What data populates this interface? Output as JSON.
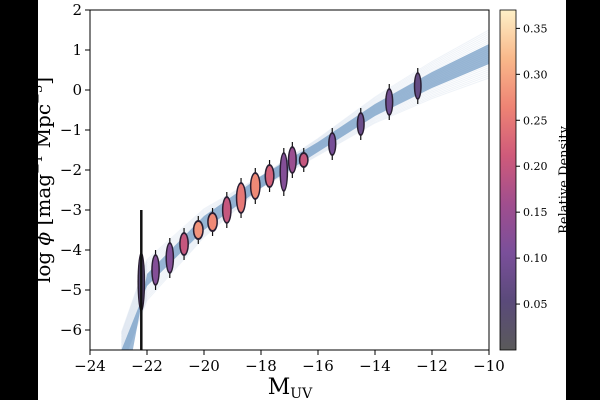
{
  "chart_data": {
    "type": "scatter",
    "background": "#000000",
    "xaxis": {
      "label": "M",
      "label_subscript": "UV",
      "xlim": [
        -24,
        -10
      ],
      "ticks": [
        -24,
        -22,
        -20,
        -18,
        -16,
        -14,
        -12,
        -10
      ],
      "tick_labels": [
        "−24",
        "−22",
        "−20",
        "−18",
        "−16",
        "−14",
        "−12",
        "−10"
      ]
    },
    "yaxis": {
      "label_prefix": "log ",
      "label_symbol": "ϕ",
      "label_units": " [mag",
      "label_exp1": "−1",
      "label_mid": " Mpc",
      "label_exp2": "−3",
      "label_close": "]",
      "ylim": [
        -6.5,
        2
      ],
      "ticks": [
        -6,
        -5,
        -4,
        -3,
        -2,
        -1,
        0,
        1,
        2
      ],
      "tick_labels": [
        "−6",
        "−5",
        "−4",
        "−3",
        "−2",
        "−1",
        "0",
        "1",
        "2"
      ]
    },
    "colorbar": {
      "label": "Relative Density",
      "range": [
        0,
        0.37
      ],
      "ticks": [
        0.05,
        0.1,
        0.15,
        0.2,
        0.25,
        0.3,
        0.35
      ],
      "tick_labels": [
        "0.05",
        "0.10",
        "0.15",
        "0.20",
        "0.25",
        "0.30",
        "0.35"
      ],
      "colors": [
        "#5a5a5a",
        "#5a4a7a",
        "#7a4f9a",
        "#a04e8e",
        "#cf5a7a",
        "#ee8374",
        "#f9b88a",
        "#fef0c7"
      ]
    },
    "model_fits": {
      "color": "#4a7fb5",
      "description_band_low": [
        [
          -22.9,
          -6.5
        ],
        [
          -22,
          -4.9
        ],
        [
          -20,
          -3.5
        ],
        [
          -18,
          -2.45
        ],
        [
          -16,
          -1.55
        ],
        [
          -14,
          -0.65
        ],
        [
          -12,
          0.05
        ],
        [
          -10,
          0.65
        ]
      ],
      "description_band_high": [
        [
          -22.5,
          -6.5
        ],
        [
          -22,
          -4.6
        ],
        [
          -20,
          -3.15
        ],
        [
          -18,
          -2.15
        ],
        [
          -16,
          -1.3
        ],
        [
          -14,
          -0.35
        ],
        [
          -12,
          0.45
        ],
        [
          -10,
          1.15
        ]
      ]
    },
    "series": [
      {
        "x": -22.2,
        "y": -4.8,
        "height": 1.5,
        "density": 0.05
      },
      {
        "x": -21.7,
        "y": -4.5,
        "height": 0.8,
        "density": 0.12
      },
      {
        "x": -21.2,
        "y": -4.2,
        "height": 0.8,
        "density": 0.12
      },
      {
        "x": -20.7,
        "y": -3.85,
        "height": 0.6,
        "density": 0.2
      },
      {
        "x": -20.2,
        "y": -3.5,
        "height": 0.5,
        "density": 0.28
      },
      {
        "x": -19.7,
        "y": -3.3,
        "height": 0.5,
        "density": 0.27
      },
      {
        "x": -19.2,
        "y": -3.0,
        "height": 0.7,
        "density": 0.2
      },
      {
        "x": -18.7,
        "y": -2.7,
        "height": 0.8,
        "density": 0.25
      },
      {
        "x": -18.2,
        "y": -2.4,
        "height": 0.7,
        "density": 0.27
      },
      {
        "x": -17.7,
        "y": -2.15,
        "height": 0.6,
        "density": 0.22
      },
      {
        "x": -17.2,
        "y": -2.05,
        "height": 1.0,
        "density": 0.12
      },
      {
        "x": -16.9,
        "y": -1.75,
        "height": 0.7,
        "density": 0.15
      },
      {
        "x": -16.5,
        "y": -1.75,
        "height": 0.4,
        "density": 0.2
      },
      {
        "x": -15.5,
        "y": -1.35,
        "height": 0.6,
        "density": 0.1
      },
      {
        "x": -14.5,
        "y": -0.85,
        "height": 0.6,
        "density": 0.08
      },
      {
        "x": -13.5,
        "y": -0.3,
        "height": 0.7,
        "density": 0.09
      },
      {
        "x": -12.5,
        "y": 0.1,
        "height": 0.7,
        "density": 0.07
      }
    ]
  }
}
